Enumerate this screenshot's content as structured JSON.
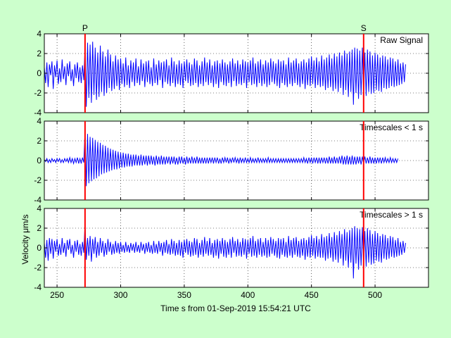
{
  "chart_data": {
    "type": "line",
    "xlabel": "Time s from 01-Sep-2019 15:54:21 UTC",
    "ylabel": "Velocity μm/s",
    "xlim": [
      240,
      542
    ],
    "x_ticks": [
      250,
      300,
      350,
      400,
      450,
      500
    ],
    "ylim": [
      -4,
      4
    ],
    "y_ticks": [
      -4,
      -2,
      0,
      2,
      4
    ],
    "grid": true,
    "line_color": "#0000ff",
    "marker_color": "#ff0000",
    "markers": [
      {
        "label": "P",
        "x": 272
      },
      {
        "label": "S",
        "x": 491
      }
    ],
    "panels": [
      {
        "title": "Raw Signal",
        "series": [
          {
            "x_start": 240,
            "dx": 1,
            "values": [
              0.6,
              -1.0,
              1.1,
              -1.4,
              0.9,
              -0.2,
              1.2,
              -1.6,
              0.8,
              -0.4,
              1.3,
              -1.1,
              0.5,
              -0.9,
              1.4,
              -0.6,
              0.7,
              -1.2,
              1.0,
              -0.3,
              1.2,
              -0.8,
              0.4,
              -1.3,
              0.9,
              -0.5,
              1.1,
              -0.9,
              0.6,
              -1.0,
              0.8,
              -0.7,
              2.6,
              -3.4,
              3.1,
              -2.5,
              2.9,
              -3.0,
              3.2,
              -2.2,
              2.6,
              -2.7,
              2.1,
              -2.4,
              2.8,
              -1.9,
              2.2,
              -2.3,
              1.7,
              -2.0,
              2.4,
              -1.5,
              1.9,
              -1.8,
              1.2,
              -1.6,
              1.8,
              -1.3,
              1.4,
              -1.7,
              1.5,
              -1.1,
              1.0,
              -1.4,
              1.6,
              -1.2,
              0.8,
              -1.5,
              1.3,
              -0.9,
              1.1,
              -1.3,
              1.5,
              -1.0,
              0.7,
              -1.2,
              1.4,
              -0.8,
              1.0,
              -1.4,
              1.2,
              -0.9,
              1.3,
              -1.1,
              0.6,
              -1.3,
              1.5,
              -1.0,
              0.9,
              -1.2,
              1.3,
              -0.7,
              1.1,
              -1.5,
              1.2,
              -0.9,
              1.4,
              -1.1,
              0.8,
              -1.3,
              1.6,
              -1.0,
              1.2,
              -1.4,
              0.9,
              -1.1,
              1.3,
              -1.2,
              1.0,
              -1.5,
              1.2,
              -0.8,
              1.4,
              -1.0,
              1.1,
              -1.3,
              0.9,
              -1.2,
              1.5,
              -1.0,
              1.3,
              -1.4,
              0.8,
              -1.1,
              1.2,
              -1.3,
              1.6,
              -0.9,
              1.1,
              -1.2,
              1.4,
              -1.0,
              0.8,
              -1.4,
              1.2,
              -1.1,
              1.3,
              -1.5,
              1.0,
              -0.9,
              1.4,
              -1.2,
              1.1,
              -1.3,
              0.9,
              -1.0,
              1.2,
              -1.4,
              1.5,
              -0.8,
              1.0,
              -1.3,
              1.3,
              -1.1,
              0.9,
              -1.2,
              1.4,
              -1.0,
              1.2,
              -1.5,
              1.1,
              -0.9,
              1.3,
              -1.2,
              1.6,
              -1.1,
              1.0,
              -1.4,
              1.2,
              -1.0,
              1.4,
              -1.3,
              0.9,
              -1.1,
              1.3,
              -1.4,
              1.1,
              -1.2,
              1.5,
              -0.9,
              1.2,
              -1.1,
              1.0,
              -1.3,
              1.4,
              -1.5,
              1.2,
              -1.0,
              1.3,
              -1.2,
              0.9,
              -1.4,
              1.6,
              -1.1,
              1.1,
              -1.3,
              1.3,
              -1.0,
              1.5,
              -1.2,
              1.0,
              -1.4,
              1.2,
              -1.1,
              1.4,
              -1.6,
              1.1,
              -1.2,
              1.5,
              -1.3,
              1.7,
              -1.1,
              1.3,
              -1.5,
              1.6,
              -1.2,
              1.2,
              -1.4,
              1.8,
              -1.3,
              1.4,
              -1.7,
              1.6,
              -1.5,
              1.9,
              -1.4,
              1.5,
              -1.8,
              2.0,
              -1.6,
              1.7,
              -1.9,
              2.1,
              -1.5,
              1.8,
              -2.2,
              2.3,
              -1.7,
              2.0,
              -2.4,
              2.2,
              -1.9,
              2.4,
              -3.2,
              2.6,
              -2.0,
              2.5,
              -2.6,
              2.3,
              -2.2,
              2.6,
              -2.4,
              2.1,
              -2.3,
              2.4,
              -1.9,
              2.2,
              -2.1,
              1.8,
              -2.0,
              2.1,
              -1.7,
              1.9,
              -1.8,
              1.6,
              -1.9,
              1.8,
              -1.5,
              1.7,
              -1.6,
              1.4,
              -1.5,
              1.6,
              -1.3,
              1.5,
              -1.4,
              1.2,
              -1.3,
              1.4,
              -1.2,
              1.0,
              -1.1,
              1.1,
              -0.9,
              0.9
            ]
          }
        ]
      },
      {
        "title": "Timescales < 1 s",
        "series": [
          {
            "x_start": 240,
            "dx": 1,
            "values": [
              0.1,
              -0.1,
              0.2,
              -0.2,
              0.1,
              -0.2,
              0.2,
              -0.1,
              0.1,
              -0.2,
              0.2,
              -0.1,
              0.2,
              -0.2,
              0.1,
              -0.2,
              0.2,
              -0.1,
              0.2,
              -0.2,
              0.3,
              -0.2,
              0.2,
              -0.3,
              0.2,
              -0.2,
              0.3,
              -0.3,
              0.2,
              -0.3,
              0.3,
              -0.2,
              2.9,
              -2.6,
              2.7,
              -2.3,
              2.4,
              -2.1,
              2.3,
              -1.9,
              2.1,
              -1.8,
              1.9,
              -1.6,
              1.8,
              -1.4,
              1.6,
              -1.3,
              1.5,
              -1.2,
              1.3,
              -1.1,
              1.2,
              -1.0,
              1.1,
              -0.9,
              1.0,
              -0.9,
              0.9,
              -0.8,
              0.8,
              -0.7,
              0.8,
              -0.7,
              0.7,
              -0.6,
              0.7,
              -0.6,
              0.6,
              -0.6,
              0.6,
              -0.5,
              0.6,
              -0.5,
              0.5,
              -0.5,
              0.6,
              -0.5,
              0.5,
              -0.4,
              0.5,
              -0.5,
              0.5,
              -0.4,
              0.5,
              -0.4,
              0.4,
              -0.5,
              0.5,
              -0.4,
              0.4,
              -0.4,
              0.5,
              -0.4,
              0.4,
              -0.4,
              0.4,
              -0.3,
              0.4,
              -0.4,
              0.4,
              -0.3,
              0.4,
              -0.4,
              0.3,
              -0.4,
              0.4,
              -0.3,
              0.4,
              -0.3,
              0.3,
              -0.4,
              0.4,
              -0.3,
              0.3,
              -0.3,
              0.4,
              -0.3,
              0.3,
              -0.3,
              0.4,
              -0.3,
              0.3,
              -0.3,
              0.3,
              -0.3,
              0.3,
              -0.3,
              0.3,
              -0.3,
              0.3,
              -0.2,
              0.3,
              -0.3,
              0.3,
              -0.2,
              0.3,
              -0.3,
              0.2,
              -0.3,
              0.3,
              -0.2,
              0.3,
              -0.2,
              0.3,
              -0.3,
              0.2,
              -0.2,
              0.3,
              -0.2,
              0.3,
              -0.2,
              0.2,
              -0.3,
              0.3,
              -0.2,
              0.2,
              -0.2,
              0.3,
              -0.2,
              0.2,
              -0.2,
              0.3,
              -0.2,
              0.2,
              -0.2,
              0.2,
              -0.2,
              0.3,
              -0.2,
              0.2,
              -0.2,
              0.2,
              -0.2,
              0.2,
              -0.2,
              0.3,
              -0.2,
              0.2,
              -0.2,
              0.2,
              -0.2,
              0.2,
              -0.2,
              0.2,
              -0.2,
              0.2,
              -0.2,
              0.2,
              -0.2,
              0.2,
              -0.2,
              0.2,
              -0.2,
              0.2,
              -0.2,
              0.2,
              -0.2,
              0.2,
              -0.2,
              0.2,
              -0.2,
              0.2,
              -0.2,
              0.3,
              -0.2,
              0.2,
              -0.3,
              0.3,
              -0.2,
              0.3,
              -0.3,
              0.3,
              -0.2,
              0.3,
              -0.3,
              0.3,
              -0.3,
              0.3,
              -0.2,
              0.3,
              -0.3,
              0.3,
              -0.3,
              0.4,
              -0.3,
              0.3,
              -0.3,
              0.4,
              -0.3,
              0.3,
              -0.3,
              0.4,
              -0.3,
              0.5,
              -0.4,
              0.4,
              -0.4,
              0.5,
              -0.4,
              0.4,
              -0.4,
              0.5,
              -0.4,
              0.4,
              -0.4,
              0.4,
              -0.3,
              0.4,
              -0.4,
              0.4,
              -0.3,
              0.4,
              -0.3,
              0.3,
              -0.3,
              0.4,
              -0.3,
              0.3,
              -0.3,
              0.3,
              -0.3,
              0.3,
              -0.2,
              0.3,
              -0.3,
              0.3,
              -0.2,
              0.3,
              -0.2,
              0.2,
              -0.2,
              0.3,
              -0.2,
              0.2,
              -0.2,
              0.2,
              -0.2,
              0.2
            ]
          }
        ]
      },
      {
        "title": "Timescales > 1 s",
        "series": [
          {
            "x_start": 240,
            "dx": 1,
            "values": [
              0.5,
              -1.0,
              0.8,
              -1.3,
              1.0,
              -0.6,
              0.9,
              -1.1,
              0.7,
              -0.4,
              0.9,
              -0.8,
              0.4,
              -0.7,
              1.0,
              -0.5,
              0.5,
              -0.9,
              0.8,
              -0.2,
              0.9,
              -0.6,
              0.3,
              -1.0,
              0.7,
              -0.4,
              0.8,
              -0.7,
              0.4,
              -0.8,
              0.6,
              -0.5,
              2.4,
              -1.2,
              1.0,
              -0.8,
              1.2,
              -1.4,
              0.9,
              -0.6,
              1.1,
              -1.0,
              0.6,
              -0.8,
              1.0,
              -0.5,
              0.7,
              -0.9,
              0.5,
              -0.7,
              0.9,
              -0.4,
              0.6,
              -0.7,
              0.4,
              -0.6,
              0.7,
              -0.5,
              0.5,
              -0.6,
              0.6,
              -0.4,
              0.3,
              -0.5,
              0.6,
              -0.4,
              0.3,
              -0.5,
              0.5,
              -0.3,
              0.4,
              -0.5,
              0.6,
              -0.4,
              0.3,
              -0.5,
              0.6,
              -0.3,
              0.4,
              -0.6,
              0.5,
              -0.4,
              0.6,
              -0.5,
              0.3,
              -0.6,
              0.7,
              -0.5,
              0.4,
              -0.6,
              0.7,
              -0.4,
              0.5,
              -0.8,
              0.6,
              -0.5,
              0.8,
              -0.6,
              0.4,
              -0.7,
              0.9,
              -0.6,
              0.7,
              -0.8,
              0.5,
              -0.7,
              0.8,
              -0.8,
              0.6,
              -1.0,
              0.8,
              -0.5,
              0.9,
              -0.7,
              0.7,
              -0.9,
              0.6,
              -0.8,
              1.0,
              -0.7,
              0.9,
              -1.0,
              0.5,
              -0.7,
              0.8,
              -0.9,
              1.1,
              -0.6,
              0.7,
              -0.8,
              1.0,
              -0.7,
              0.5,
              -1.0,
              0.8,
              -0.8,
              0.9,
              -1.1,
              0.7,
              -0.6,
              1.0,
              -0.9,
              0.8,
              -1.0,
              0.6,
              -0.7,
              0.9,
              -1.0,
              1.1,
              -0.5,
              0.7,
              -0.9,
              0.9,
              -0.8,
              0.6,
              -0.9,
              1.0,
              -0.7,
              0.9,
              -1.1,
              0.8,
              -0.6,
              1.0,
              -0.9,
              1.2,
              -0.8,
              0.7,
              -1.0,
              0.9,
              -0.7,
              1.0,
              -0.9,
              0.6,
              -0.8,
              1.0,
              -1.0,
              0.8,
              -0.9,
              1.1,
              -0.6,
              0.9,
              -0.8,
              0.7,
              -1.0,
              1.0,
              -1.1,
              0.9,
              -0.7,
              1.0,
              -0.9,
              0.6,
              -1.0,
              1.2,
              -0.8,
              0.8,
              -1.0,
              1.0,
              -0.7,
              1.1,
              -0.9,
              0.7,
              -1.0,
              0.9,
              -0.8,
              1.0,
              -1.2,
              0.8,
              -0.9,
              1.1,
              -1.0,
              1.3,
              -0.8,
              1.0,
              -1.1,
              1.2,
              -0.9,
              0.9,
              -1.0,
              1.4,
              -1.0,
              1.1,
              -1.3,
              1.2,
              -1.1,
              1.5,
              -1.0,
              1.1,
              -1.4,
              1.6,
              -1.2,
              1.3,
              -1.5,
              1.7,
              -1.1,
              1.4,
              -1.8,
              1.9,
              -1.3,
              1.6,
              -2.0,
              1.8,
              -1.5,
              2.0,
              -3.1,
              2.2,
              -1.6,
              2.0,
              -2.2,
              1.9,
              -1.8,
              2.1,
              -2.0,
              1.7,
              -1.9,
              2.0,
              -1.5,
              1.8,
              -1.7,
              1.4,
              -1.6,
              1.7,
              -1.3,
              1.5,
              -1.4,
              1.2,
              -1.5,
              1.4,
              -1.1,
              1.3,
              -1.2,
              1.0,
              -1.1,
              1.2,
              -0.9,
              1.1,
              -1.0,
              0.8,
              -0.9,
              1.0,
              -0.8,
              0.6,
              -0.7,
              0.7,
              -0.5,
              0.5
            ]
          }
        ]
      }
    ]
  }
}
